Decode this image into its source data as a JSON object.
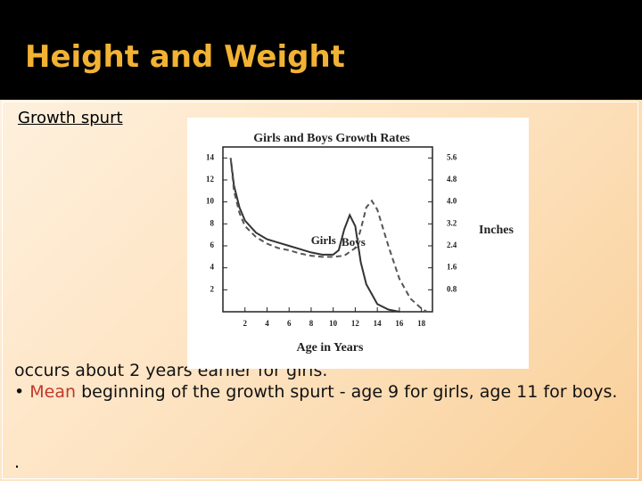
{
  "slide": {
    "title": "Height and Weight",
    "subtitle": "Growth spurt",
    "body": [
      "occurs about 2 years earlier for girls.",
      {
        "bullet": "•",
        "highlight": "Mean",
        "text": "beginning of the growth spurt - age 9 for girls, age 11 for boys."
      }
    ],
    "footer": "."
  },
  "chart_data": {
    "type": "line",
    "title": "Girls and Boys Growth Rates",
    "x_label": "Age in Years",
    "y2_label": "Inches",
    "xlim": [
      0,
      19
    ],
    "xticks": [
      2,
      4,
      6,
      8,
      10,
      12,
      14,
      16,
      18
    ],
    "ylim": [
      0,
      15
    ],
    "yticks": [
      2,
      4,
      6,
      8,
      10,
      12,
      14
    ],
    "y2lim": [
      0,
      6
    ],
    "y2ticks": [
      0.8,
      1.6,
      2.4,
      3.2,
      {
        "value": 4,
        "label": "4.0"
      },
      4.8,
      5.6
    ],
    "series": [
      {
        "name": "Girls",
        "color": "#333333",
        "dashed": false,
        "x": [
          0.7,
          1,
          1.5,
          2,
          3,
          4,
          5,
          6,
          7,
          8,
          9,
          10,
          10.5,
          11,
          11.5,
          12,
          12.5,
          13,
          14,
          15,
          16
        ],
        "values": [
          14,
          11.5,
          9.5,
          8.3,
          7.2,
          6.6,
          6.3,
          6.0,
          5.7,
          5.4,
          5.2,
          5.2,
          5.6,
          7.5,
          8.8,
          7.8,
          4.5,
          2.5,
          0.7,
          0.2,
          0
        ]
      },
      {
        "name": "Boys",
        "color": "#555555",
        "dashed": true,
        "x": [
          0.7,
          1,
          1.5,
          2,
          3,
          4,
          5,
          6,
          7,
          8,
          9,
          10,
          11,
          12,
          12.5,
          13,
          13.5,
          14,
          15,
          16,
          17,
          18,
          18.5
        ],
        "values": [
          14,
          11,
          9,
          7.8,
          6.8,
          6.2,
          5.8,
          5.6,
          5.3,
          5.1,
          5.0,
          5.0,
          5.1,
          5.8,
          7.5,
          9.5,
          10.1,
          9.3,
          6,
          3,
          1.2,
          0.3,
          0
        ]
      }
    ]
  }
}
